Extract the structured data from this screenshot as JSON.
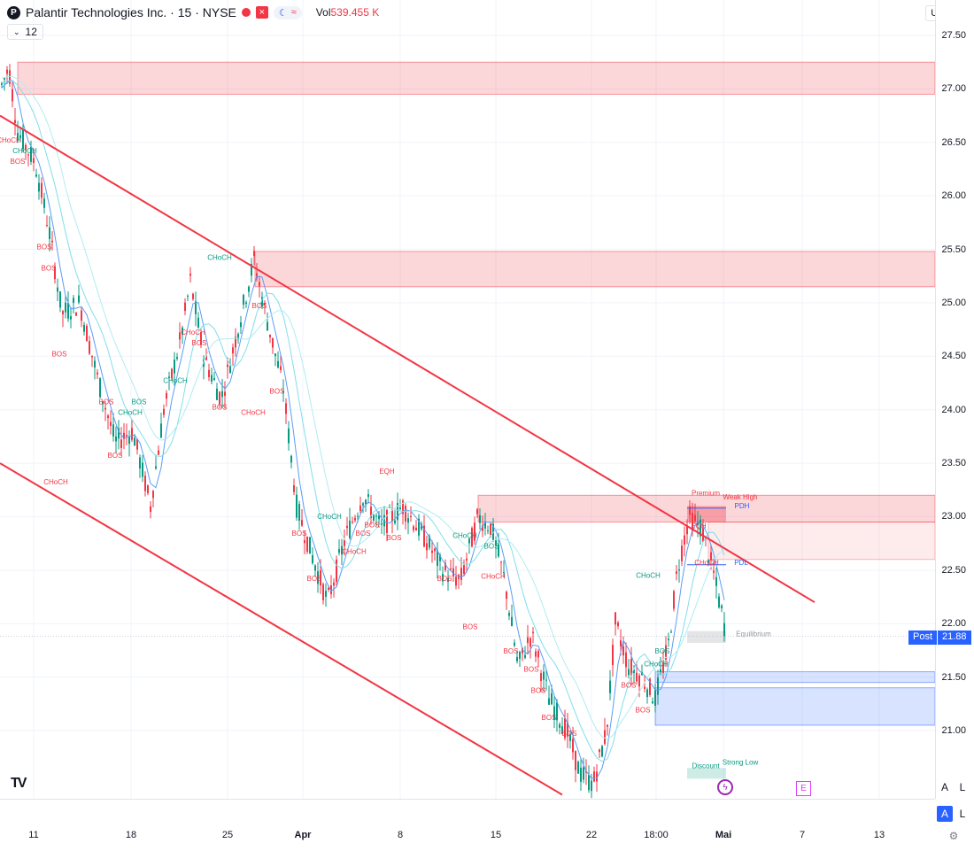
{
  "header": {
    "symbol": "Palantir Technologies Inc. · 15 · NYSE",
    "vol_label": "Vol",
    "vol_value": "539.455 K",
    "interval_value": "12",
    "currency": "USD"
  },
  "post_label": {
    "text": "Post",
    "value": "21.88"
  },
  "event_markers": {
    "e": "E"
  },
  "axis_buttons": {
    "a1": "A",
    "l1": "L",
    "a2": "A",
    "l2": "L"
  },
  "icons": [
    "logo-icon",
    "close-icon",
    "moon-icon",
    "wave-icon",
    "chevron-down-icon",
    "lightning-icon",
    "gear-icon",
    "tradingview-logo-icon"
  ],
  "colors": {
    "bull": "#089981",
    "bear": "#f23645",
    "supply": "#f23645",
    "demand": "#2962ff",
    "accent": "#2962ff"
  },
  "chart_data": {
    "type": "candlestick",
    "instrument": "Palantir Technologies Inc.",
    "ylim": [
      20.4,
      27.7
    ],
    "y_ticks": [
      "27.50",
      "27.00",
      "26.50",
      "26.00",
      "25.50",
      "25.00",
      "24.50",
      "24.00",
      "23.50",
      "23.00",
      "22.50",
      "22.00",
      "21.50",
      "21.00"
    ],
    "x_ticks": [
      "11",
      "18",
      "25",
      "Apr",
      "8",
      "15",
      "22",
      "18:00",
      "Mai",
      "7",
      "13"
    ],
    "current_price": 21.88,
    "trendlines": [
      {
        "from": [
          0,
          26.75
        ],
        "to": [
          920,
          22.2
        ]
      },
      {
        "from": [
          0,
          23.5
        ],
        "to": [
          635,
          20.4
        ]
      }
    ],
    "zones": [
      {
        "kind": "supply",
        "top": 27.25,
        "bottom": 26.95
      },
      {
        "kind": "supply",
        "top": 25.48,
        "bottom": 25.15
      },
      {
        "kind": "supply",
        "top": 23.2,
        "bottom": 22.95
      },
      {
        "kind": "demand",
        "top": 21.55,
        "bottom": 21.45
      },
      {
        "kind": "demand",
        "top": 21.4,
        "bottom": 21.05
      }
    ],
    "annotations": [
      {
        "text": "CHoCH",
        "x": 10,
        "y": 26.5,
        "c": "bear"
      },
      {
        "text": "CHoCH",
        "x": 28,
        "y": 26.4,
        "c": "bull"
      },
      {
        "text": "BOS",
        "x": 20,
        "y": 26.3,
        "c": "bear"
      },
      {
        "text": "BOS",
        "x": 50,
        "y": 25.5,
        "c": "bear"
      },
      {
        "text": "BOS",
        "x": 55,
        "y": 25.3,
        "c": "bear"
      },
      {
        "text": "BOS",
        "x": 67,
        "y": 24.5,
        "c": "bear"
      },
      {
        "text": "BOS",
        "x": 120,
        "y": 24.05,
        "c": "bear"
      },
      {
        "text": "BOS",
        "x": 130,
        "y": 23.55,
        "c": "bear"
      },
      {
        "text": "BOS",
        "x": 157,
        "y": 24.05,
        "c": "bull"
      },
      {
        "text": "CHoCH",
        "x": 147,
        "y": 23.95,
        "c": "bull"
      },
      {
        "text": "CHoCH",
        "x": 63,
        "y": 23.3,
        "c": "bear"
      },
      {
        "text": "CHoCH",
        "x": 248,
        "y": 25.4,
        "c": "bull"
      },
      {
        "text": "CHoCH",
        "x": 218,
        "y": 24.7,
        "c": "bear"
      },
      {
        "text": "BOS",
        "x": 225,
        "y": 24.6,
        "c": "bear"
      },
      {
        "text": "CHoCH",
        "x": 198,
        "y": 24.25,
        "c": "bull"
      },
      {
        "text": "BOS",
        "x": 248,
        "y": 24.0,
        "c": "bear"
      },
      {
        "text": "CHoCH",
        "x": 286,
        "y": 23.95,
        "c": "bear"
      },
      {
        "text": "BOS",
        "x": 293,
        "y": 24.95,
        "c": "bear"
      },
      {
        "text": "BOS",
        "x": 313,
        "y": 24.15,
        "c": "bear"
      },
      {
        "text": "EQH",
        "x": 437,
        "y": 23.4,
        "c": "bear"
      },
      {
        "text": "CHoCH",
        "x": 372,
        "y": 22.98,
        "c": "bull"
      },
      {
        "text": "BOS",
        "x": 338,
        "y": 22.82,
        "c": "bear"
      },
      {
        "text": "BOS",
        "x": 410,
        "y": 22.82,
        "c": "bear"
      },
      {
        "text": "BOS",
        "x": 420,
        "y": 22.9,
        "c": "bear"
      },
      {
        "text": "BOS",
        "x": 445,
        "y": 22.78,
        "c": "bear"
      },
      {
        "text": "CHoCH",
        "x": 400,
        "y": 22.65,
        "c": "bear"
      },
      {
        "text": "CHoCH",
        "x": 525,
        "y": 22.8,
        "c": "bull"
      },
      {
        "text": "BOS",
        "x": 555,
        "y": 22.7,
        "c": "bull"
      },
      {
        "text": "BOS",
        "x": 355,
        "y": 22.4,
        "c": "bear"
      },
      {
        "text": "BOS",
        "x": 502,
        "y": 22.4,
        "c": "bear"
      },
      {
        "text": "CHoCH",
        "x": 557,
        "y": 22.42,
        "c": "bear"
      },
      {
        "text": "BOS",
        "x": 531,
        "y": 21.95,
        "c": "bear"
      },
      {
        "text": "BOS",
        "x": 577,
        "y": 21.72,
        "c": "bear"
      },
      {
        "text": "BOS",
        "x": 600,
        "y": 21.55,
        "c": "bear"
      },
      {
        "text": "BOS",
        "x": 608,
        "y": 21.35,
        "c": "bear"
      },
      {
        "text": "BOS",
        "x": 620,
        "y": 21.1,
        "c": "bear"
      },
      {
        "text": "BOS",
        "x": 643,
        "y": 20.95,
        "c": "bear"
      },
      {
        "text": "CHoCH",
        "x": 732,
        "y": 22.43,
        "c": "bull"
      },
      {
        "text": "BOS",
        "x": 748,
        "y": 21.72,
        "c": "bull"
      },
      {
        "text": "CHoCH",
        "x": 741,
        "y": 21.6,
        "c": "bull"
      },
      {
        "text": "BOS",
        "x": 710,
        "y": 21.4,
        "c": "bear"
      },
      {
        "text": "BOS",
        "x": 726,
        "y": 21.17,
        "c": "bear"
      },
      {
        "text": "CHoCH",
        "x": 798,
        "y": 22.55,
        "c": "bear"
      },
      {
        "text": "EQH",
        "x": 789,
        "y": 22.89,
        "c": "bear"
      },
      {
        "text": "Premium",
        "x": 797,
        "y": 23.2,
        "c": "bear"
      },
      {
        "text": "Weak High",
        "x": 836,
        "y": 23.16,
        "c": "bear"
      },
      {
        "text": "PDH",
        "x": 838,
        "y": 23.08,
        "c": "demand"
      },
      {
        "text": "PDL",
        "x": 837,
        "y": 22.55,
        "c": "demand"
      },
      {
        "text": "Equilibrium",
        "x": 851,
        "y": 21.88,
        "c": "grey"
      },
      {
        "text": "Discount",
        "x": 797,
        "y": 20.65,
        "c": "bull"
      },
      {
        "text": "Strong Low",
        "x": 836,
        "y": 20.68,
        "c": "bull"
      }
    ]
  }
}
